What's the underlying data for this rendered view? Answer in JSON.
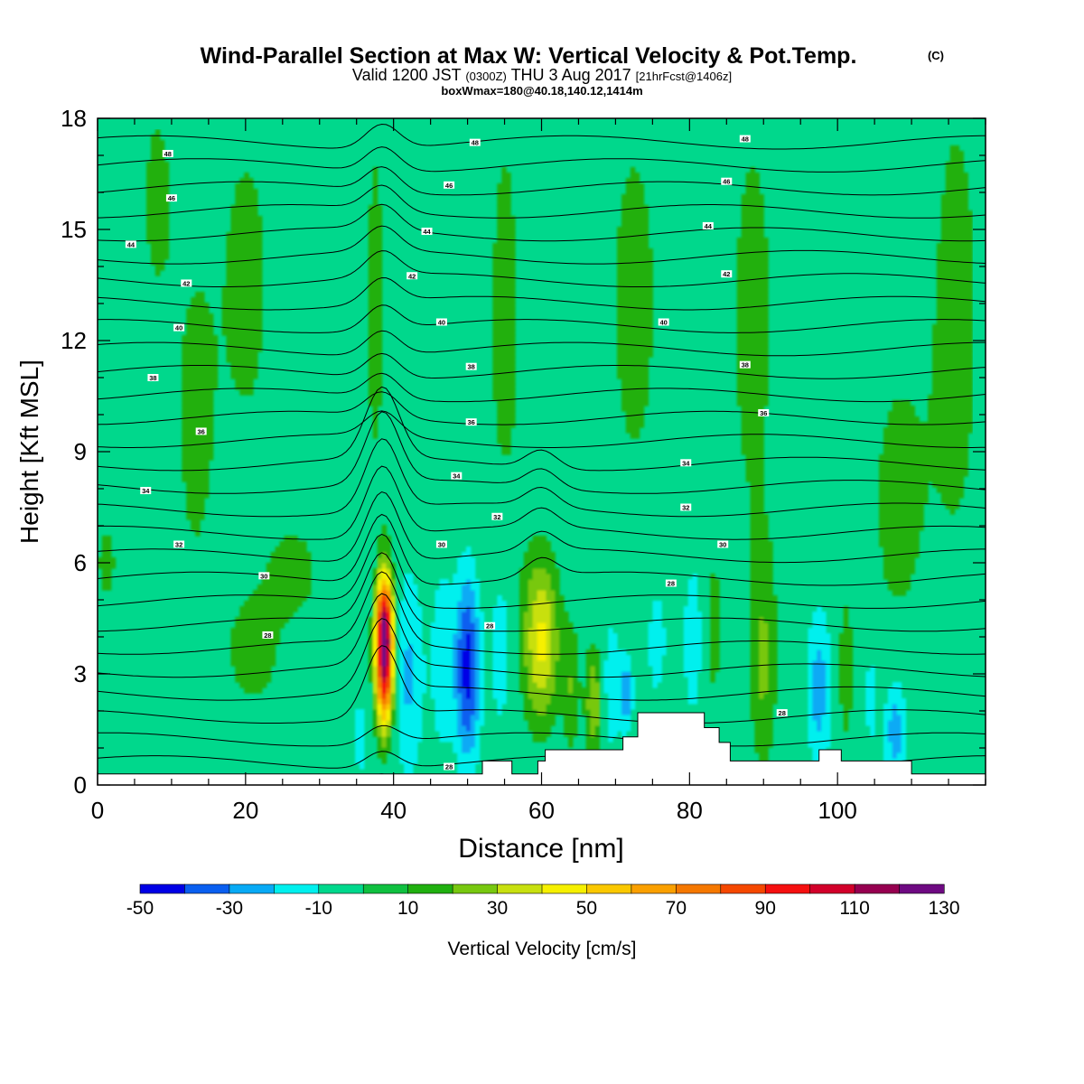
{
  "header": {
    "title": "Wind-Parallel Section at Max W: Vertical Velocity & Pot.Temp.",
    "title_mark": "(C)",
    "valid_prefix": "Valid 1200 JST",
    "valid_utc": "(0300Z)",
    "valid_date": "THU 3 Aug 2017",
    "valid_fcst": "[21hrFcst@1406z]",
    "box_info": "boxWmax=180@40.18,140.12,1414m"
  },
  "chart_data": {
    "type": "heatmap",
    "xlabel": "Distance [nm]",
    "ylabel": "Height [Kft MSL]",
    "xlim": [
      0,
      120
    ],
    "ylim": [
      0,
      18
    ],
    "x_ticks": [
      0,
      20,
      40,
      60,
      80,
      100
    ],
    "y_ticks": [
      0,
      3,
      6,
      9,
      12,
      15,
      18
    ],
    "grid": false,
    "legend_position": "bottom",
    "colorbar": {
      "label": "Vertical Velocity [cm/s]",
      "tick_labels": [
        "-50",
        "-30",
        "-10",
        "10",
        "30",
        "50",
        "70",
        "90",
        "110",
        "130"
      ],
      "colors": [
        "#0000e6",
        "#0a5ff0",
        "#08aaf5",
        "#00f0ee",
        "#00d88c",
        "#10c040",
        "#20b010",
        "#78c810",
        "#c8e010",
        "#f6f000",
        "#fac800",
        "#faa000",
        "#f57800",
        "#f54800",
        "#f51010",
        "#d2002a",
        "#960050",
        "#6e0a82"
      ],
      "bin_width": 10,
      "min": -50,
      "max": 130
    },
    "base_color": "#00d88c",
    "w_features": [
      {
        "x": 38.8,
        "z": 3.6,
        "sx": 0.85,
        "sz": 1.35,
        "w": 125
      },
      {
        "x": 38.8,
        "z": 4.6,
        "sx": 0.8,
        "sz": 0.75,
        "w": 20
      },
      {
        "x": 42.0,
        "z": 3.0,
        "sx": 1.6,
        "sz": 2.2,
        "w": -22
      },
      {
        "x": 35.5,
        "z": 1.3,
        "sx": 0.9,
        "sz": 1.0,
        "w": -15
      },
      {
        "x": 36.5,
        "z": 6.0,
        "sx": 0.9,
        "sz": 1.0,
        "w": -12
      },
      {
        "x": 50.0,
        "z": 3.2,
        "sx": 1.3,
        "sz": 1.9,
        "w": -45
      },
      {
        "x": 46.5,
        "z": 3.4,
        "sx": 1.0,
        "sz": 1.9,
        "w": -18
      },
      {
        "x": 54.5,
        "z": 3.8,
        "sx": 1.2,
        "sz": 1.9,
        "w": -22
      },
      {
        "x": 60.0,
        "z": 3.9,
        "sx": 1.7,
        "sz": 1.6,
        "w": 42
      },
      {
        "x": 64.0,
        "z": 2.6,
        "sx": 0.85,
        "sz": 1.3,
        "w": 18
      },
      {
        "x": 67.0,
        "z": 2.2,
        "sx": 0.8,
        "sz": 1.1,
        "w": 28
      },
      {
        "x": 69.5,
        "z": 2.8,
        "sx": 0.9,
        "sz": 1.4,
        "w": -22
      },
      {
        "x": 71.5,
        "z": 2.5,
        "sx": 0.7,
        "sz": 0.8,
        "w": -28
      },
      {
        "x": 75.5,
        "z": 4.0,
        "sx": 1.2,
        "sz": 1.5,
        "w": -18
      },
      {
        "x": 80.5,
        "z": 4.0,
        "sx": 1.2,
        "sz": 1.8,
        "w": -18
      },
      {
        "x": 83.0,
        "z": 4.2,
        "sx": 0.9,
        "sz": 1.5,
        "w": 15
      },
      {
        "x": 90.0,
        "z": 3.2,
        "sx": 1.2,
        "sz": 2.0,
        "w": 18
      },
      {
        "x": 97.5,
        "z": 2.6,
        "sx": 1.3,
        "sz": 1.7,
        "w": -25
      },
      {
        "x": 101.0,
        "z": 3.0,
        "sx": 1.0,
        "sz": 2.0,
        "w": 14
      },
      {
        "x": 104.5,
        "z": 2.6,
        "sx": 0.9,
        "sz": 1.6,
        "w": -15
      },
      {
        "x": 107.8,
        "z": 1.5,
        "sx": 1.2,
        "sz": 1.2,
        "w": -28
      },
      {
        "x": 1.2,
        "z": 6.0,
        "sx": 1.5,
        "sz": 1.4,
        "w": 12
      },
      {
        "x": 27.0,
        "z": 5.8,
        "sx": 3.0,
        "sz": 1.1,
        "w": 12
      },
      {
        "x": 21.0,
        "z": 3.5,
        "sx": 3.5,
        "sz": 1.4,
        "w": 12
      },
      {
        "x": 13.0,
        "z": 9.5,
        "sx": 2.0,
        "sz": 3.5,
        "w": 12
      },
      {
        "x": 8.0,
        "z": 15.8,
        "sx": 2.2,
        "sz": 3.0,
        "w": 12
      },
      {
        "x": 20.0,
        "z": 13.5,
        "sx": 4.0,
        "sz": 5.0,
        "w": 12
      },
      {
        "x": 55.0,
        "z": 12.5,
        "sx": 2.5,
        "sz": 7.0,
        "w": 12
      },
      {
        "x": 72.5,
        "z": 13.0,
        "sx": 4.0,
        "sz": 6.0,
        "w": 12
      },
      {
        "x": 88.5,
        "z": 12.5,
        "sx": 3.5,
        "sz": 7.0,
        "w": 12
      },
      {
        "x": 107.5,
        "z": 7.5,
        "sx": 3.0,
        "sz": 3.5,
        "w": 12
      },
      {
        "x": 116.0,
        "z": 12.5,
        "sx": 4.0,
        "sz": 8.0,
        "w": 12
      },
      {
        "x": 37.5,
        "z": 13.0,
        "sx": 1.5,
        "sz": 6.0,
        "w": 12
      }
    ],
    "terrain": [
      [
        0,
        0.3
      ],
      [
        52,
        0.3
      ],
      [
        52,
        0.65
      ],
      [
        56,
        0.65
      ],
      [
        56,
        0.3
      ],
      [
        59.5,
        0.3
      ],
      [
        59.5,
        0.65
      ],
      [
        60.5,
        0.65
      ],
      [
        60.5,
        0.95
      ],
      [
        71,
        0.95
      ],
      [
        71,
        1.3
      ],
      [
        73,
        1.3
      ],
      [
        73,
        1.95
      ],
      [
        82,
        1.95
      ],
      [
        82,
        1.55
      ],
      [
        84,
        1.55
      ],
      [
        84,
        1.15
      ],
      [
        85.5,
        1.15
      ],
      [
        85.5,
        0.65
      ],
      [
        97.5,
        0.65
      ],
      [
        97.5,
        0.95
      ],
      [
        100.5,
        0.95
      ],
      [
        100.5,
        0.65
      ],
      [
        110,
        0.65
      ],
      [
        110,
        0.3
      ],
      [
        120,
        0.3
      ]
    ],
    "isotherms": {
      "levels": [
        20,
        21,
        22,
        23,
        24,
        25,
        26,
        27,
        28,
        29,
        30,
        31,
        32,
        33,
        34,
        35,
        36,
        37,
        38,
        39,
        40,
        41,
        42,
        43,
        44,
        45,
        46,
        47,
        48
      ],
      "labels": [
        {
          "text": "28",
          "x": 47.5,
          "z": 0.5
        },
        {
          "text": "28",
          "x": 23,
          "z": 4.05
        },
        {
          "text": "30",
          "x": 22.5,
          "z": 5.65
        },
        {
          "text": "32",
          "x": 11,
          "z": 6.5
        },
        {
          "text": "34",
          "x": 6.5,
          "z": 7.95
        },
        {
          "text": "36",
          "x": 14,
          "z": 9.55
        },
        {
          "text": "38",
          "x": 7.5,
          "z": 11.0
        },
        {
          "text": "40",
          "x": 11,
          "z": 12.35
        },
        {
          "text": "42",
          "x": 12,
          "z": 13.55
        },
        {
          "text": "44",
          "x": 4.5,
          "z": 14.6
        },
        {
          "text": "46",
          "x": 10,
          "z": 15.85
        },
        {
          "text": "48",
          "x": 9.5,
          "z": 17.05
        },
        {
          "text": "28",
          "x": 53,
          "z": 4.3
        },
        {
          "text": "30",
          "x": 46.5,
          "z": 6.5
        },
        {
          "text": "32",
          "x": 54,
          "z": 7.25
        },
        {
          "text": "34",
          "x": 48.5,
          "z": 8.35
        },
        {
          "text": "36",
          "x": 50.5,
          "z": 9.8
        },
        {
          "text": "38",
          "x": 50.5,
          "z": 11.3
        },
        {
          "text": "40",
          "x": 46.5,
          "z": 12.5
        },
        {
          "text": "42",
          "x": 42.5,
          "z": 13.75
        },
        {
          "text": "44",
          "x": 44.5,
          "z": 14.95
        },
        {
          "text": "46",
          "x": 47.5,
          "z": 16.2
        },
        {
          "text": "48",
          "x": 51,
          "z": 17.35
        },
        {
          "text": "28",
          "x": 77.5,
          "z": 5.45
        },
        {
          "text": "30",
          "x": 84.5,
          "z": 6.5
        },
        {
          "text": "32",
          "x": 79.5,
          "z": 7.5
        },
        {
          "text": "34",
          "x": 79.5,
          "z": 8.7
        },
        {
          "text": "36",
          "x": 90,
          "z": 10.05
        },
        {
          "text": "38",
          "x": 87.5,
          "z": 11.35
        },
        {
          "text": "40",
          "x": 76.5,
          "z": 12.5
        },
        {
          "text": "42",
          "x": 85,
          "z": 13.8
        },
        {
          "text": "44",
          "x": 82.5,
          "z": 15.1
        },
        {
          "text": "46",
          "x": 85,
          "z": 16.3
        },
        {
          "text": "48",
          "x": 87.5,
          "z": 17.45
        },
        {
          "text": "28",
          "x": 92.5,
          "z": 1.95
        }
      ]
    }
  }
}
